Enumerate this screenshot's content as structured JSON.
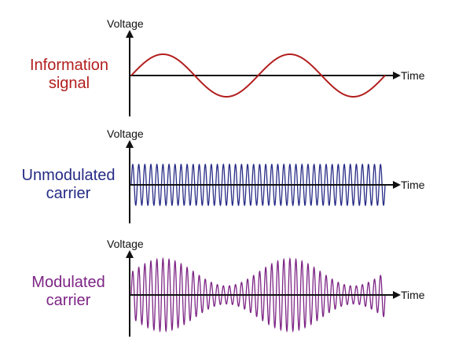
{
  "colors": {
    "axis": "#111111",
    "information": "#b31e1e",
    "carrier": "#262b85",
    "modulated": "#7d2585"
  },
  "panels": [
    {
      "id": "information",
      "label_lines": [
        "Information",
        "signal"
      ],
      "y_axis_label": "Voltage",
      "x_axis_label": "Time",
      "wave": "sine",
      "cycles": 2
    },
    {
      "id": "carrier",
      "label_lines": [
        "Unmodulated",
        "carrier"
      ],
      "y_axis_label": "Voltage",
      "x_axis_label": "Time",
      "wave": "carrier",
      "cycles": 42
    },
    {
      "id": "modulated",
      "label_lines": [
        "Modulated",
        "carrier"
      ],
      "y_axis_label": "Voltage",
      "x_axis_label": "Time",
      "wave": "am",
      "cycles": 42,
      "envelope_cycles": 2,
      "modulation_depth": 0.6
    }
  ]
}
